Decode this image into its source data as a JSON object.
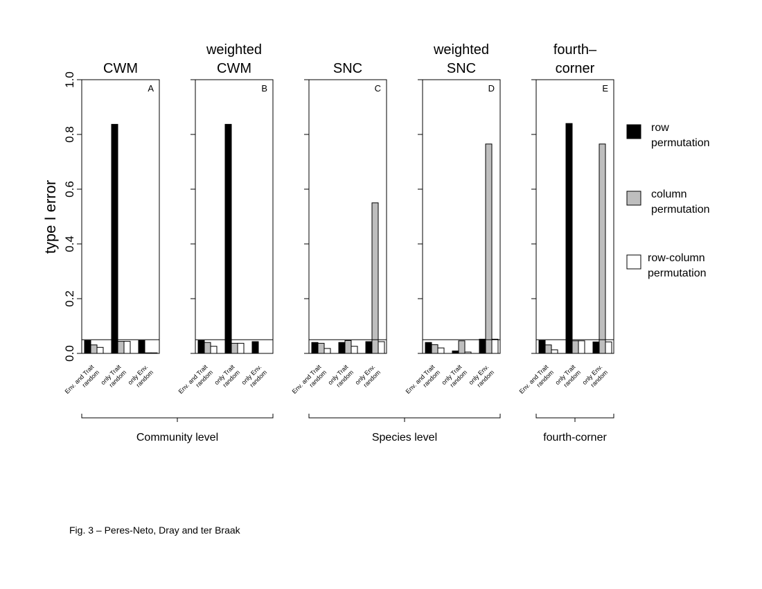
{
  "caption": "Fig. 3 – Peres-Neto, Dray and ter Braak",
  "y_axis": {
    "label": "type I error",
    "ticks": [
      "0.0",
      "0.2",
      "0.4",
      "0.6",
      "0.8",
      "1.0"
    ],
    "tick_values": [
      0,
      0.2,
      0.4,
      0.6,
      0.8,
      1.0
    ]
  },
  "legend": {
    "items": [
      {
        "label_lines": [
          "row",
          "permutation"
        ],
        "color": "#000000"
      },
      {
        "label_lines": [
          "column",
          "permutation"
        ],
        "color": "#bebebe"
      },
      {
        "label_lines": [
          "row-column",
          "permutation"
        ],
        "color": "#ffffff"
      }
    ]
  },
  "groups": [
    {
      "label": "Community level",
      "panels": [
        0,
        1
      ]
    },
    {
      "label": "Species level",
      "panels": [
        2,
        3
      ]
    },
    {
      "label": "fourth-corner",
      "panels": [
        4
      ]
    }
  ],
  "chart_data": {
    "type": "bar",
    "ylim": [
      0,
      1
    ],
    "reference_line": 0.05,
    "ylabel": "type I error",
    "categories": [
      [
        "Env. and Trait",
        "random"
      ],
      [
        "only Trait",
        "random"
      ],
      [
        "only Env.",
        "random"
      ]
    ],
    "series_names": [
      "row permutation",
      "column permutation",
      "row-column permutation"
    ],
    "series_colors": [
      "#000000",
      "#bebebe",
      "#ffffff"
    ],
    "panels": [
      {
        "title_lines": [
          "CWM"
        ],
        "letter": "A",
        "values": [
          [
            0.047,
            0.031,
            0.022
          ],
          [
            0.837,
            0.044,
            0.044
          ],
          [
            0.047,
            0.002,
            0.002
          ]
        ]
      },
      {
        "title_lines": [
          "weighted",
          "CWM"
        ],
        "letter": "B",
        "values": [
          [
            0.047,
            0.04,
            0.026
          ],
          [
            0.837,
            0.037,
            0.037
          ],
          [
            0.043,
            0.0,
            0.0
          ]
        ]
      },
      {
        "title_lines": [
          "SNC"
        ],
        "letter": "C",
        "values": [
          [
            0.04,
            0.037,
            0.018
          ],
          [
            0.04,
            0.047,
            0.026
          ],
          [
            0.043,
            0.55,
            0.043
          ]
        ]
      },
      {
        "title_lines": [
          "weighted",
          "SNC"
        ],
        "letter": "D",
        "values": [
          [
            0.04,
            0.032,
            0.02
          ],
          [
            0.009,
            0.046,
            0.005
          ],
          [
            0.052,
            0.765,
            0.052
          ]
        ]
      },
      {
        "title_lines": [
          "fourth–",
          "corner"
        ],
        "letter": "E",
        "values": [
          [
            0.047,
            0.031,
            0.013
          ],
          [
            0.84,
            0.046,
            0.046
          ],
          [
            0.042,
            0.765,
            0.042
          ]
        ]
      }
    ]
  }
}
